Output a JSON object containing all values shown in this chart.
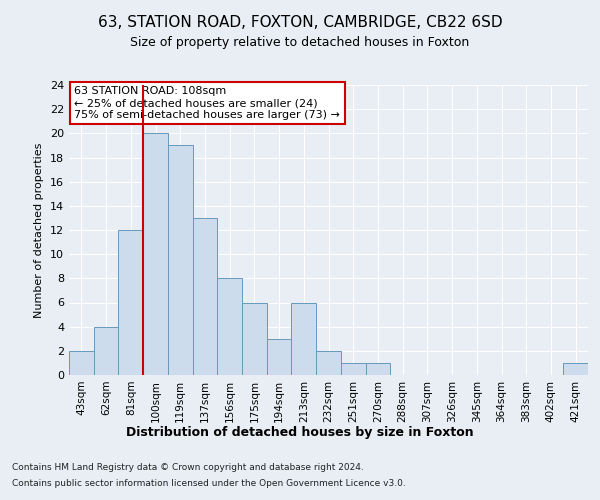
{
  "title1": "63, STATION ROAD, FOXTON, CAMBRIDGE, CB22 6SD",
  "title2": "Size of property relative to detached houses in Foxton",
  "xlabel": "Distribution of detached houses by size in Foxton",
  "ylabel": "Number of detached properties",
  "bins": [
    "43sqm",
    "62sqm",
    "81sqm",
    "100sqm",
    "119sqm",
    "137sqm",
    "156sqm",
    "175sqm",
    "194sqm",
    "213sqm",
    "232sqm",
    "251sqm",
    "270sqm",
    "288sqm",
    "307sqm",
    "326sqm",
    "345sqm",
    "364sqm",
    "383sqm",
    "402sqm",
    "421sqm"
  ],
  "values": [
    2,
    4,
    12,
    20,
    19,
    13,
    8,
    6,
    3,
    6,
    2,
    1,
    1,
    0,
    0,
    0,
    0,
    0,
    0,
    0,
    1
  ],
  "bar_color": "#ccdcec",
  "bar_edge_color": "#6699bb",
  "vline_x_index": 3,
  "vline_color": "#cc0000",
  "annotation_text": "63 STATION ROAD: 108sqm\n← 25% of detached houses are smaller (24)\n75% of semi-detached houses are larger (73) →",
  "annotation_box_color": "#ffffff",
  "annotation_box_edge": "#cc0000",
  "ylim": [
    0,
    24
  ],
  "yticks": [
    0,
    2,
    4,
    6,
    8,
    10,
    12,
    14,
    16,
    18,
    20,
    22,
    24
  ],
  "footer1": "Contains HM Land Registry data © Crown copyright and database right 2024.",
  "footer2": "Contains public sector information licensed under the Open Government Licence v3.0.",
  "bg_color": "#e8eef4",
  "plot_bg_color": "#e8eef4",
  "title1_fontsize": 11,
  "title2_fontsize": 9
}
